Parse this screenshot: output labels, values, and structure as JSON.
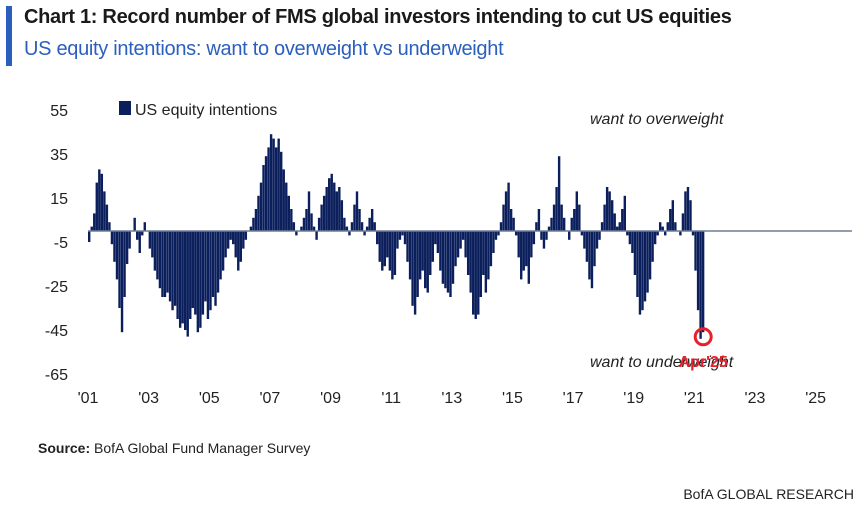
{
  "header": {
    "title": "Chart 1: Record number of FMS global investors intending to cut US equities",
    "subtitle": "US equity intentions: want to overweight vs underweight"
  },
  "source": {
    "label": "Source:",
    "text": "BofA Global Fund Manager Survey"
  },
  "footer": {
    "brand": "BofA GLOBAL RESEARCH"
  },
  "colors": {
    "bar": "#0b1f5c",
    "highlight": "#e8202a",
    "accent": "#2b5fbd",
    "zero_line": "#6f7f96"
  },
  "chart_data": {
    "type": "bar",
    "legend": {
      "label": "US equity intentions",
      "position": "top-left"
    },
    "annotations": {
      "overweight": "want to overweight",
      "underweight": "want to underweight",
      "highlight_label": "Apr'25"
    },
    "ylim": [
      -65,
      55
    ],
    "yticks": [
      55,
      35,
      15,
      -5,
      -25,
      -45,
      -65
    ],
    "ytick_labels": [
      "55",
      "35",
      "15",
      "-5",
      "-25",
      "-45",
      "-65"
    ],
    "xtick_labels": [
      "'01",
      "'03",
      "'05",
      "'07",
      "'09",
      "'11",
      "'13",
      "'15",
      "'17",
      "'19",
      "'21",
      "'23",
      "'25"
    ],
    "xtick_years": [
      2001,
      2003,
      2005,
      2007,
      2009,
      2011,
      2013,
      2015,
      2017,
      2019,
      2021,
      2023,
      2025
    ],
    "xlim_years": [
      2001.0,
      2026.2
    ],
    "series": [
      {
        "start": "2001-01",
        "frequency": "monthly",
        "values": [
          -5,
          2,
          8,
          22,
          28,
          26,
          18,
          12,
          4,
          -6,
          -14,
          -22,
          -35,
          -46,
          -30,
          -15,
          -8,
          0,
          6,
          -4,
          -10,
          -2,
          4,
          0,
          -8,
          -12,
          -18,
          -22,
          -26,
          -30,
          -30,
          -28,
          -32,
          -36,
          -34,
          -40,
          -44,
          -42,
          -45,
          -48,
          -40,
          -35,
          -38,
          -46,
          -44,
          -38,
          -32,
          -40,
          -36,
          -30,
          -34,
          -28,
          -22,
          -18,
          -12,
          -8,
          -4,
          -6,
          -12,
          -18,
          -14,
          -8,
          -4,
          0,
          2,
          6,
          10,
          16,
          22,
          30,
          34,
          38,
          44,
          42,
          38,
          42,
          36,
          28,
          22,
          16,
          10,
          4,
          -2,
          0,
          2,
          6,
          10,
          18,
          8,
          2,
          -4,
          6,
          12,
          16,
          20,
          24,
          26,
          22,
          18,
          20,
          14,
          6,
          2,
          -2,
          4,
          12,
          18,
          10,
          4,
          -2,
          2,
          6,
          10,
          4,
          -6,
          -14,
          -18,
          -16,
          -12,
          -18,
          -22,
          -20,
          -8,
          -4,
          -2,
          -6,
          -14,
          -22,
          -34,
          -38,
          -30,
          -22,
          -18,
          -26,
          -28,
          -20,
          -14,
          -6,
          -10,
          -18,
          -24,
          -26,
          -28,
          -30,
          -24,
          -16,
          -12,
          -8,
          -4,
          -12,
          -20,
          -28,
          -38,
          -40,
          -38,
          -30,
          -20,
          -28,
          -22,
          -16,
          -10,
          -4,
          -2,
          4,
          12,
          18,
          22,
          10,
          6,
          -2,
          -12,
          -22,
          -18,
          -16,
          -24,
          -12,
          -6,
          4,
          10,
          -4,
          -8,
          -4,
          2,
          6,
          12,
          20,
          34,
          12,
          6,
          0,
          -4,
          6,
          10,
          18,
          12,
          -2,
          -8,
          -14,
          -22,
          -26,
          -16,
          -8,
          -4,
          4,
          12,
          20,
          18,
          14,
          8,
          2,
          4,
          10,
          16,
          -2,
          -6,
          -10,
          -20,
          -30,
          -38,
          -36,
          -32,
          -28,
          -22,
          -14,
          -6,
          -2,
          4,
          2,
          -2,
          4,
          10,
          14,
          4,
          0,
          -2,
          8,
          18,
          20,
          14,
          -2,
          -18,
          -36,
          -49,
          -46
        ]
      }
    ],
    "highlight_value": -49
  }
}
